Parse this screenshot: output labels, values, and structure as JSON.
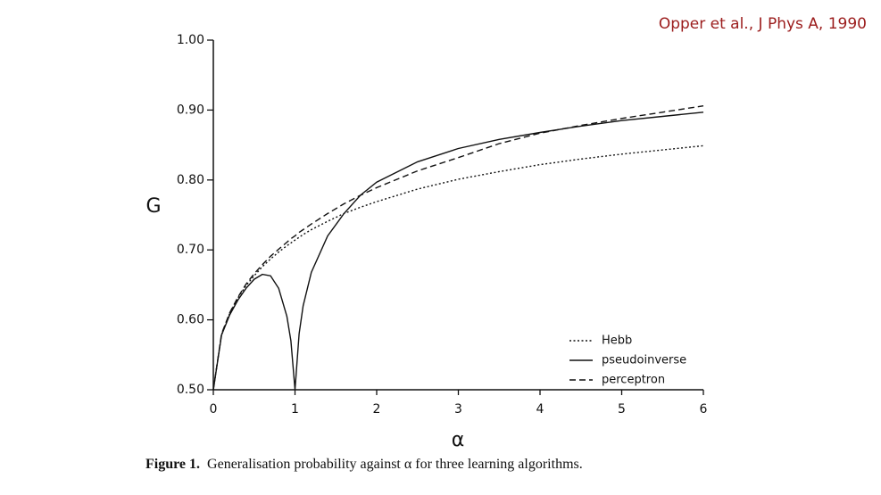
{
  "chart_data": {
    "type": "line",
    "source": "Opper et al., J Phys A, 1990",
    "caption_label": "Figure 1.",
    "caption": "Generalisation probability against α for three learning algorithms.",
    "xlabel": "α",
    "ylabel": "G",
    "x": [
      0,
      0.1,
      0.2,
      0.3,
      0.4,
      0.5,
      0.6,
      0.7,
      0.8,
      0.9,
      0.95,
      1.0,
      1.05,
      1.1,
      1.2,
      1.4,
      1.6,
      1.8,
      2,
      2.5,
      3,
      3.5,
      4,
      4.5,
      5,
      5.5,
      6
    ],
    "series": [
      {
        "name": "Hebb",
        "color": "#111111",
        "linestyle": "dotted",
        "values": [
          0.5,
          0.579,
          0.609,
          0.631,
          0.649,
          0.663,
          0.676,
          0.687,
          0.697,
          0.706,
          0.71,
          0.714,
          0.718,
          0.722,
          0.729,
          0.741,
          0.752,
          0.761,
          0.769,
          0.787,
          0.801,
          0.812,
          0.822,
          0.83,
          0.837,
          0.843,
          0.849
        ]
      },
      {
        "name": "pseudoinverse",
        "color": "#111111",
        "linestyle": "solid",
        "values": [
          0.5,
          0.578,
          0.607,
          0.628,
          0.645,
          0.658,
          0.665,
          0.663,
          0.645,
          0.605,
          0.57,
          0.5,
          0.58,
          0.62,
          0.668,
          0.72,
          0.752,
          0.778,
          0.797,
          0.826,
          0.845,
          0.858,
          0.868,
          0.877,
          0.885,
          0.891,
          0.897
        ]
      },
      {
        "name": "perceptron",
        "color": "#111111",
        "linestyle": "dashed",
        "values": [
          0.5,
          0.58,
          0.61,
          0.632,
          0.651,
          0.666,
          0.679,
          0.691,
          0.701,
          0.711,
          0.716,
          0.72,
          0.725,
          0.729,
          0.737,
          0.752,
          0.766,
          0.778,
          0.789,
          0.813,
          0.832,
          0.852,
          0.867,
          0.878,
          0.888,
          0.897,
          0.906
        ]
      }
    ],
    "xlim": [
      0,
      6
    ],
    "xticks": [
      0,
      1,
      2,
      3,
      4,
      5,
      6
    ],
    "ylim": [
      0.5,
      1.0
    ],
    "yticks": [
      {
        "value": 0.5,
        "label": "0.50"
      },
      {
        "value": 0.6,
        "label": "0.60"
      },
      {
        "value": 0.7,
        "label": "0.70"
      },
      {
        "value": 0.8,
        "label": "0.80"
      },
      {
        "value": 0.9,
        "label": "0.90"
      },
      {
        "value": 1.0,
        "label": "1.00"
      }
    ],
    "legend": "lower right",
    "grid": false
  }
}
